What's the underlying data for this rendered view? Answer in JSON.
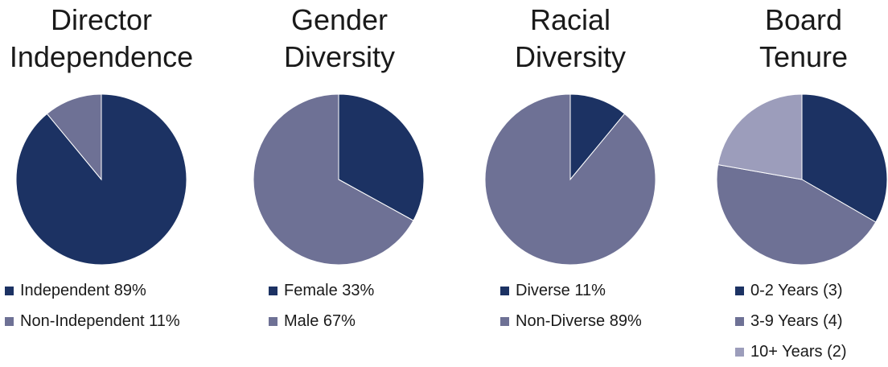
{
  "colors": {
    "dark_navy": "#1c3263",
    "slate": "#6e7195",
    "light_slate": "#9c9dbb"
  },
  "chart_data": [
    {
      "type": "pie",
      "title": "Director Independence",
      "title_lines": [
        "Director",
        "Independence"
      ],
      "slices": [
        {
          "label": "Independent 89%",
          "value": 89,
          "color": "#1c3263"
        },
        {
          "label": "Non-Independent 11%",
          "value": 11,
          "color": "#6e7195"
        }
      ]
    },
    {
      "type": "pie",
      "title": "Gender Diversity",
      "title_lines": [
        "Gender",
        "Diversity"
      ],
      "slices": [
        {
          "label": "Female 33%",
          "value": 33,
          "color": "#1c3263"
        },
        {
          "label": "Male 67%",
          "value": 67,
          "color": "#6e7195"
        }
      ]
    },
    {
      "type": "pie",
      "title": "Racial Diversity",
      "title_lines": [
        "Racial",
        "Diversity"
      ],
      "slices": [
        {
          "label": "Diverse 11%",
          "value": 11,
          "color": "#1c3263"
        },
        {
          "label": "Non-Diverse 89%",
          "value": 89,
          "color": "#6e7195"
        }
      ]
    },
    {
      "type": "pie",
      "title": "Board Tenure",
      "title_lines": [
        "Board",
        "Tenure"
      ],
      "slices": [
        {
          "label": "0-2 Years (3)",
          "value": 3,
          "color": "#1c3263"
        },
        {
          "label": "3-9 Years (4)",
          "value": 4,
          "color": "#6e7195"
        },
        {
          "label": "10+ Years (2)",
          "value": 2,
          "color": "#9c9dbb"
        }
      ]
    }
  ]
}
